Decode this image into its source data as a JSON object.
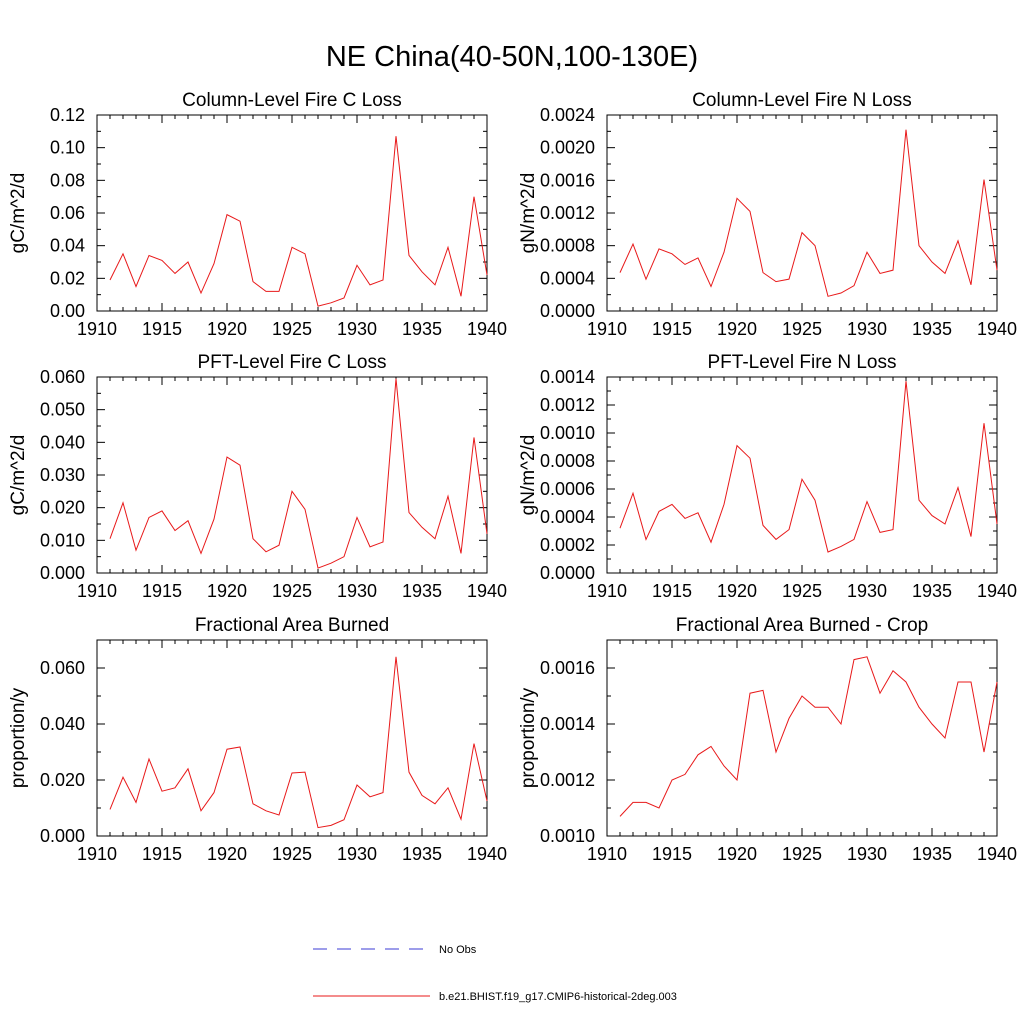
{
  "figure": {
    "title": "NE China(40-50N,100-130E)",
    "legend": [
      {
        "label": "No Obs",
        "color": "#3b3bd6",
        "style": "dashed"
      },
      {
        "label": "b.e21.BHIST.f19_g17.CMIP6-historical-2deg.003",
        "color": "#e8191a",
        "style": "solid"
      }
    ]
  },
  "chart_data": [
    {
      "type": "line",
      "title": "Column-Level Fire C Loss",
      "ylabel": "gC/m^2/d",
      "xlim": [
        1910,
        1940
      ],
      "ylim": [
        0,
        0.12
      ],
      "xticks": [
        1910,
        1915,
        1920,
        1925,
        1930,
        1935,
        1940
      ],
      "yticks": [
        0,
        0.02,
        0.04,
        0.06,
        0.08,
        0.1,
        0.12
      ],
      "yticklabels": [
        "0.00",
        "0.02",
        "0.04",
        "0.06",
        "0.08",
        "0.10",
        "0.12"
      ],
      "x": [
        1911,
        1912,
        1913,
        1914,
        1915,
        1916,
        1917,
        1918,
        1919,
        1920,
        1921,
        1922,
        1923,
        1924,
        1925,
        1926,
        1927,
        1928,
        1929,
        1930,
        1931,
        1932,
        1933,
        1934,
        1935,
        1936,
        1937,
        1938,
        1939,
        1940
      ],
      "series": [
        {
          "name": "b.e21.BHIST.f19_g17.CMIP6-historical-2deg.003",
          "color": "#e8191a",
          "values": [
            0.019,
            0.035,
            0.015,
            0.034,
            0.031,
            0.023,
            0.03,
            0.011,
            0.029,
            0.059,
            0.055,
            0.018,
            0.012,
            0.012,
            0.039,
            0.035,
            0.003,
            0.005,
            0.008,
            0.028,
            0.016,
            0.019,
            0.107,
            0.034,
            0.024,
            0.016,
            0.039,
            0.009,
            0.07,
            0.022
          ]
        }
      ]
    },
    {
      "type": "line",
      "title": "Column-Level Fire N Loss",
      "ylabel": "gN/m^2/d",
      "xlim": [
        1910,
        1940
      ],
      "ylim": [
        0,
        0.0024
      ],
      "xticks": [
        1910,
        1915,
        1920,
        1925,
        1930,
        1935,
        1940
      ],
      "yticks": [
        0,
        0.0004,
        0.0008,
        0.0012,
        0.0016,
        0.002,
        0.0024
      ],
      "yticklabels": [
        "0.0000",
        "0.0004",
        "0.0008",
        "0.0012",
        "0.0016",
        "0.0020",
        "0.0024"
      ],
      "x": [
        1911,
        1912,
        1913,
        1914,
        1915,
        1916,
        1917,
        1918,
        1919,
        1920,
        1921,
        1922,
        1923,
        1924,
        1925,
        1926,
        1927,
        1928,
        1929,
        1930,
        1931,
        1932,
        1933,
        1934,
        1935,
        1936,
        1937,
        1938,
        1939,
        1940
      ],
      "series": [
        {
          "name": "b.e21.BHIST.f19_g17.CMIP6-historical-2deg.003",
          "color": "#e8191a",
          "values": [
            0.00047,
            0.00082,
            0.00039,
            0.00076,
            0.0007,
            0.00057,
            0.00065,
            0.0003,
            0.00072,
            0.00138,
            0.00122,
            0.00047,
            0.00036,
            0.00039,
            0.00096,
            0.0008,
            0.00018,
            0.00022,
            0.00031,
            0.00072,
            0.00046,
            0.0005,
            0.00222,
            0.0008,
            0.0006,
            0.00046,
            0.00086,
            0.00032,
            0.00161,
            0.0005
          ]
        }
      ]
    },
    {
      "type": "line",
      "title": "PFT-Level Fire C Loss",
      "ylabel": "gC/m^2/d",
      "xlim": [
        1910,
        1940
      ],
      "ylim": [
        0,
        0.06
      ],
      "xticks": [
        1910,
        1915,
        1920,
        1925,
        1930,
        1935,
        1940
      ],
      "yticks": [
        0,
        0.01,
        0.02,
        0.03,
        0.04,
        0.05,
        0.06
      ],
      "yticklabels": [
        "0.000",
        "0.010",
        "0.020",
        "0.030",
        "0.040",
        "0.050",
        "0.060"
      ],
      "x": [
        1911,
        1912,
        1913,
        1914,
        1915,
        1916,
        1917,
        1918,
        1919,
        1920,
        1921,
        1922,
        1923,
        1924,
        1925,
        1926,
        1927,
        1928,
        1929,
        1930,
        1931,
        1932,
        1933,
        1934,
        1935,
        1936,
        1937,
        1938,
        1939,
        1940
      ],
      "series": [
        {
          "name": "b.e21.BHIST.f19_g17.CMIP6-historical-2deg.003",
          "color": "#e8191a",
          "values": [
            0.0105,
            0.0215,
            0.007,
            0.017,
            0.019,
            0.013,
            0.016,
            0.006,
            0.0165,
            0.0355,
            0.033,
            0.0105,
            0.0065,
            0.0085,
            0.025,
            0.0195,
            0.0015,
            0.003,
            0.005,
            0.017,
            0.008,
            0.0095,
            0.0595,
            0.0185,
            0.014,
            0.0105,
            0.0235,
            0.006,
            0.0415,
            0.012
          ]
        }
      ]
    },
    {
      "type": "line",
      "title": "PFT-Level Fire N Loss",
      "ylabel": "gN/m^2/d",
      "xlim": [
        1910,
        1940
      ],
      "ylim": [
        0,
        0.0014
      ],
      "xticks": [
        1910,
        1915,
        1920,
        1925,
        1930,
        1935,
        1940
      ],
      "yticks": [
        0,
        0.0002,
        0.0004,
        0.0006,
        0.0008,
        0.001,
        0.0012,
        0.0014
      ],
      "yticklabels": [
        "0.0000",
        "0.0002",
        "0.0004",
        "0.0006",
        "0.0008",
        "0.0010",
        "0.0012",
        "0.0014"
      ],
      "x": [
        1911,
        1912,
        1913,
        1914,
        1915,
        1916,
        1917,
        1918,
        1919,
        1920,
        1921,
        1922,
        1923,
        1924,
        1925,
        1926,
        1927,
        1928,
        1929,
        1930,
        1931,
        1932,
        1933,
        1934,
        1935,
        1936,
        1937,
        1938,
        1939,
        1940
      ],
      "series": [
        {
          "name": "b.e21.BHIST.f19_g17.CMIP6-historical-2deg.003",
          "color": "#e8191a",
          "values": [
            0.00032,
            0.00057,
            0.00024,
            0.00044,
            0.00049,
            0.00039,
            0.00043,
            0.00022,
            0.00049,
            0.00091,
            0.00082,
            0.00034,
            0.00024,
            0.00031,
            0.00067,
            0.00052,
            0.00015,
            0.00019,
            0.00024,
            0.00051,
            0.00029,
            0.00031,
            0.00137,
            0.00052,
            0.00041,
            0.00035,
            0.00061,
            0.00026,
            0.00107,
            0.00035
          ]
        }
      ]
    },
    {
      "type": "line",
      "title": "Fractional Area Burned",
      "ylabel": "proportion/y",
      "xlim": [
        1910,
        1940
      ],
      "ylim": [
        0,
        0.07
      ],
      "xticks": [
        1910,
        1915,
        1920,
        1925,
        1930,
        1935,
        1940
      ],
      "yticks": [
        0,
        0.02,
        0.04,
        0.06
      ],
      "yticklabels": [
        "0.000",
        "0.020",
        "0.040",
        "0.060"
      ],
      "x": [
        1911,
        1912,
        1913,
        1914,
        1915,
        1916,
        1917,
        1918,
        1919,
        1920,
        1921,
        1922,
        1923,
        1924,
        1925,
        1926,
        1927,
        1928,
        1929,
        1930,
        1931,
        1932,
        1933,
        1934,
        1935,
        1936,
        1937,
        1938,
        1939,
        1940
      ],
      "series": [
        {
          "name": "b.e21.BHIST.f19_g17.CMIP6-historical-2deg.003",
          "color": "#e8191a",
          "values": [
            0.0095,
            0.021,
            0.012,
            0.0275,
            0.016,
            0.0172,
            0.024,
            0.009,
            0.0155,
            0.031,
            0.0318,
            0.0115,
            0.009,
            0.0075,
            0.0225,
            0.0228,
            0.003,
            0.0038,
            0.0058,
            0.0182,
            0.014,
            0.0155,
            0.064,
            0.0228,
            0.0145,
            0.0115,
            0.0172,
            0.006,
            0.033,
            0.0125
          ]
        }
      ]
    },
    {
      "type": "line",
      "title": "Fractional Area Burned - Crop",
      "ylabel": "proportion/y",
      "xlim": [
        1910,
        1940
      ],
      "ylim": [
        0.001,
        0.0017
      ],
      "xticks": [
        1910,
        1915,
        1920,
        1925,
        1930,
        1935,
        1940
      ],
      "yticks": [
        0.001,
        0.0012,
        0.0014,
        0.0016
      ],
      "yticklabels": [
        "0.0010",
        "0.0012",
        "0.0014",
        "0.0016"
      ],
      "x": [
        1911,
        1912,
        1913,
        1914,
        1915,
        1916,
        1917,
        1918,
        1919,
        1920,
        1921,
        1922,
        1923,
        1924,
        1925,
        1926,
        1927,
        1928,
        1929,
        1930,
        1931,
        1932,
        1933,
        1934,
        1935,
        1936,
        1937,
        1938,
        1939,
        1940
      ],
      "series": [
        {
          "name": "b.e21.BHIST.f19_g17.CMIP6-historical-2deg.003",
          "color": "#e8191a",
          "values": [
            0.00107,
            0.00112,
            0.00112,
            0.0011,
            0.0012,
            0.00122,
            0.00129,
            0.00132,
            0.00125,
            0.0012,
            0.00151,
            0.00152,
            0.0013,
            0.00142,
            0.0015,
            0.00146,
            0.00146,
            0.0014,
            0.00163,
            0.00164,
            0.00151,
            0.00159,
            0.00155,
            0.00146,
            0.0014,
            0.00135,
            0.00155,
            0.00155,
            0.0013,
            0.00155
          ]
        }
      ]
    }
  ]
}
